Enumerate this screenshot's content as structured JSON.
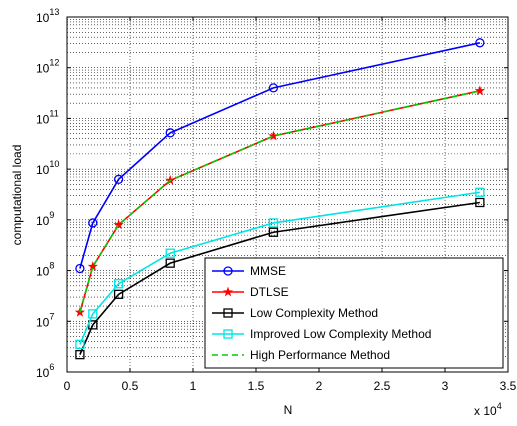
{
  "chart_data": {
    "type": "line",
    "xlabel": "N",
    "ylabel": "computational load",
    "x_multiplier": "x 10",
    "x_multiplier_exp": "4",
    "xlim": [
      0,
      35000
    ],
    "ylim": [
      1000000,
      10000000000000
    ],
    "yscale": "log",
    "grid": true,
    "legend_position": "bottom-right",
    "x_ticks": [
      0,
      5000,
      10000,
      15000,
      20000,
      25000,
      30000,
      35000
    ],
    "x_tick_labels": [
      "0",
      "0.5",
      "1",
      "1.5",
      "2",
      "2.5",
      "3",
      "3.5"
    ],
    "y_tick_exponents": [
      "6",
      "7",
      "8",
      "9",
      "10",
      "11",
      "12",
      "13"
    ],
    "x": [
      1024,
      2048,
      4096,
      8192,
      16384,
      32768
    ],
    "series": [
      {
        "name": "MMSE",
        "color": "#0000ff",
        "marker": "circle",
        "dash": "solid",
        "values": [
          110000000,
          870000000,
          6300000000,
          52000000000,
          400000000000,
          3100000000000
        ]
      },
      {
        "name": "DTLSE",
        "color": "#ff0000",
        "marker": "star",
        "dash": "solid",
        "values": [
          15000000,
          120000000,
          800000000,
          6000000000,
          45000000000,
          350000000000
        ]
      },
      {
        "name": "Low Complexity Method",
        "color": "#000000",
        "marker": "square",
        "dash": "solid",
        "values": [
          2200000,
          8500000,
          34000000,
          140000000,
          570000000,
          2200000000
        ]
      },
      {
        "name": "Improved Low Complexity Method",
        "color": "#00e5e5",
        "marker": "square",
        "dash": "solid",
        "values": [
          3500000,
          14000000,
          55000000,
          220000000,
          870000000,
          3500000000
        ]
      },
      {
        "name": "High Performance Method",
        "color": "#00cc00",
        "marker": "none",
        "dash": "dashed",
        "values": [
          15000000,
          120000000,
          800000000,
          6000000000,
          45000000000,
          350000000000
        ]
      }
    ]
  }
}
